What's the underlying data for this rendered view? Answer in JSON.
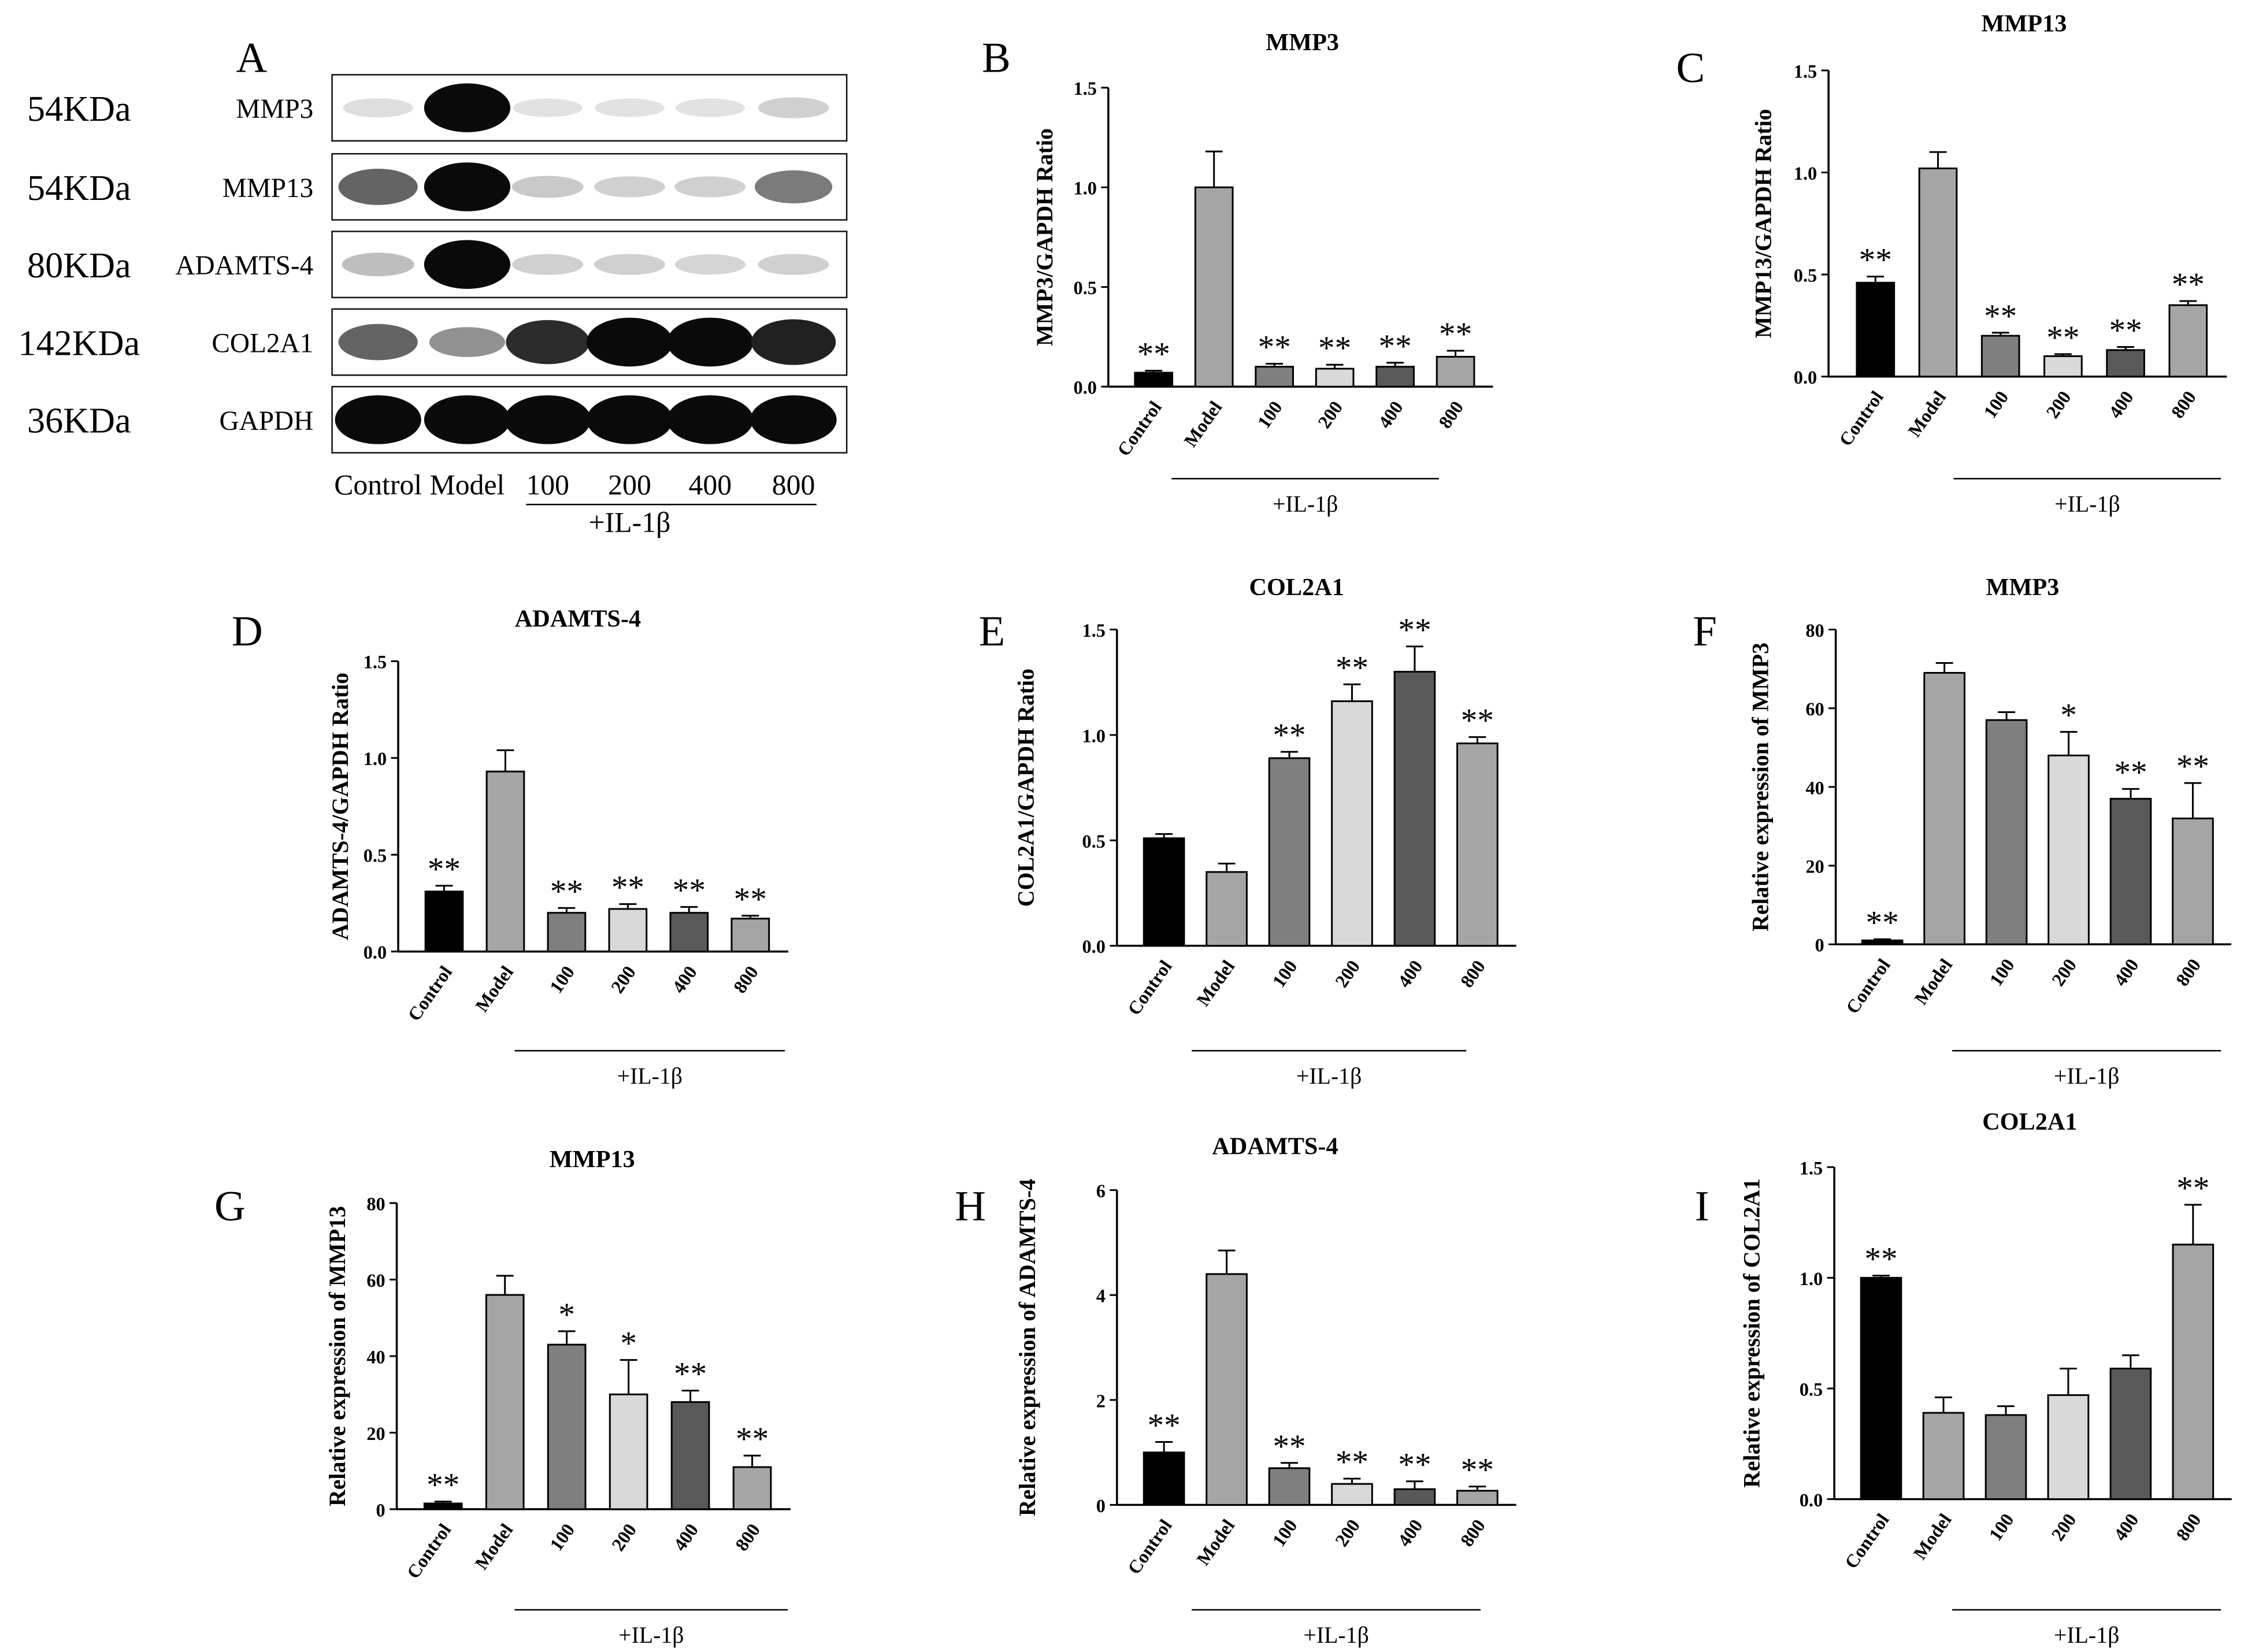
{
  "blot": {
    "label": "A",
    "rows": [
      {
        "kda": "54KDa",
        "protein": "MMP3",
        "bands": [
          0.06,
          1.0,
          0.04,
          0.04,
          0.04,
          0.12
        ]
      },
      {
        "kda": "54KDa",
        "protein": "MMP13",
        "bands": [
          0.6,
          1.0,
          0.15,
          0.12,
          0.12,
          0.5
        ]
      },
      {
        "kda": "80KDa",
        "protein": "ADAMTS-4",
        "bands": [
          0.2,
          1.0,
          0.12,
          0.12,
          0.1,
          0.12
        ]
      },
      {
        "kda": "142KDa",
        "protein": "COL2A1",
        "bands": [
          0.6,
          0.4,
          0.85,
          1.0,
          1.0,
          0.9
        ]
      },
      {
        "kda": "36KDa",
        "protein": "GAPDH",
        "bands": [
          1.0,
          1.0,
          1.0,
          1.0,
          1.0,
          1.0
        ]
      }
    ],
    "lanes": [
      "Control",
      "Model",
      "100",
      "200",
      "400",
      "800"
    ],
    "treatment": "+IL-1β"
  },
  "chart_data": [
    {
      "panel": "B",
      "type": "bar",
      "title": "MMP3",
      "ylabel": "MMP3/GAPDH Ratio",
      "categories": [
        "Control",
        "Model",
        "100",
        "200",
        "400",
        "800"
      ],
      "values": [
        0.07,
        1.0,
        0.1,
        0.09,
        0.1,
        0.15
      ],
      "errors": [
        0.01,
        0.18,
        0.015,
        0.02,
        0.02,
        0.03
      ],
      "significance": [
        "**",
        "",
        "**",
        "**",
        "**",
        "**"
      ],
      "ylim": [
        0,
        1.5
      ],
      "yticks": [
        "0.0",
        "0.5",
        "1.0",
        "1.5"
      ],
      "colors": [
        "#000000",
        "#a5a5a5",
        "#7f7f7f",
        "#d9d9d9",
        "#595959",
        "#a5a5a5"
      ],
      "group_label": "+IL-1β"
    },
    {
      "panel": "C",
      "type": "bar",
      "title": "MMP13",
      "ylabel": "MMP13/GAPDH Ratio",
      "categories": [
        "Control",
        "Model",
        "100",
        "200",
        "400",
        "800"
      ],
      "values": [
        0.46,
        1.02,
        0.2,
        0.1,
        0.13,
        0.35
      ],
      "errors": [
        0.03,
        0.08,
        0.015,
        0.01,
        0.015,
        0.02
      ],
      "significance": [
        "**",
        "",
        "**",
        "**",
        "**",
        "**"
      ],
      "ylim": [
        0,
        1.5
      ],
      "yticks": [
        "0.0",
        "0.5",
        "1.0",
        "1.5"
      ],
      "colors": [
        "#000000",
        "#a5a5a5",
        "#7f7f7f",
        "#d9d9d9",
        "#595959",
        "#a5a5a5"
      ],
      "group_label": "+IL-1β"
    },
    {
      "panel": "D",
      "type": "bar",
      "title": "ADAMTS-4",
      "ylabel": "ADAMTS-4/GAPDH Ratio",
      "categories": [
        "Control",
        "Model",
        "100",
        "200",
        "400",
        "800"
      ],
      "values": [
        0.31,
        0.93,
        0.2,
        0.22,
        0.2,
        0.17
      ],
      "errors": [
        0.03,
        0.11,
        0.025,
        0.025,
        0.03,
        0.015
      ],
      "significance": [
        "**",
        "",
        "**",
        "**",
        "**",
        "**"
      ],
      "ylim": [
        0,
        1.5
      ],
      "yticks": [
        "0.0",
        "0.5",
        "1.0",
        "1.5"
      ],
      "colors": [
        "#000000",
        "#a5a5a5",
        "#7f7f7f",
        "#d9d9d9",
        "#595959",
        "#a5a5a5"
      ],
      "group_label": "+IL-1β"
    },
    {
      "panel": "E",
      "type": "bar",
      "title": "COL2A1",
      "ylabel": "COL2A1/GAPDH Ratio",
      "categories": [
        "Control",
        "Model",
        "100",
        "200",
        "400",
        "800"
      ],
      "values": [
        0.51,
        0.35,
        0.89,
        1.16,
        1.3,
        0.96
      ],
      "errors": [
        0.02,
        0.04,
        0.03,
        0.08,
        0.12,
        0.03
      ],
      "significance": [
        "",
        "",
        "**",
        "**",
        "**",
        "**"
      ],
      "ylim": [
        0,
        1.5
      ],
      "yticks": [
        "0.0",
        "0.5",
        "1.0",
        "1.5"
      ],
      "colors": [
        "#000000",
        "#a5a5a5",
        "#7f7f7f",
        "#d9d9d9",
        "#595959",
        "#a5a5a5"
      ],
      "group_label": "+IL-1β"
    },
    {
      "panel": "F",
      "type": "bar",
      "title": "MMP3",
      "ylabel": "Relative expression of MMP3",
      "categories": [
        "Control",
        "Model",
        "100",
        "200",
        "400",
        "800"
      ],
      "values": [
        1.0,
        69,
        57,
        48,
        37,
        32
      ],
      "errors": [
        0.3,
        2.5,
        2,
        6,
        2.5,
        9
      ],
      "significance": [
        "**",
        "",
        "",
        "*",
        "**",
        "**"
      ],
      "ylim": [
        0,
        80
      ],
      "yticks": [
        "0",
        "20",
        "40",
        "60",
        "80"
      ],
      "colors": [
        "#000000",
        "#a5a5a5",
        "#7f7f7f",
        "#d9d9d9",
        "#595959",
        "#a5a5a5"
      ],
      "group_label": "+IL-1β"
    },
    {
      "panel": "G",
      "type": "bar",
      "title": "MMP13",
      "ylabel": "Relative expression of MMP13",
      "categories": [
        "Control",
        "Model",
        "100",
        "200",
        "400",
        "800"
      ],
      "values": [
        1.5,
        56,
        43,
        30,
        28,
        11
      ],
      "errors": [
        0.5,
        5,
        3.5,
        9,
        3,
        3
      ],
      "significance": [
        "**",
        "",
        "*",
        "*",
        "**",
        "**"
      ],
      "ylim": [
        0,
        80
      ],
      "yticks": [
        "0",
        "20",
        "40",
        "60",
        "80"
      ],
      "colors": [
        "#000000",
        "#a5a5a5",
        "#7f7f7f",
        "#d9d9d9",
        "#595959",
        "#a5a5a5"
      ],
      "group_label": "+IL-1β"
    },
    {
      "panel": "H",
      "type": "bar",
      "title": "ADAMTS-4",
      "ylabel": "Relative expression of ADAMTS-4",
      "categories": [
        "Control",
        "Model",
        "100",
        "200",
        "400",
        "800"
      ],
      "values": [
        1.0,
        4.4,
        0.7,
        0.4,
        0.3,
        0.27
      ],
      "errors": [
        0.2,
        0.45,
        0.1,
        0.1,
        0.15,
        0.08
      ],
      "significance": [
        "**",
        "",
        "**",
        "**",
        "**",
        "**"
      ],
      "ylim": [
        0,
        6
      ],
      "yticks": [
        "0",
        "2",
        "4",
        "6"
      ],
      "colors": [
        "#000000",
        "#a5a5a5",
        "#7f7f7f",
        "#d9d9d9",
        "#595959",
        "#a5a5a5"
      ],
      "group_label": "+IL-1β"
    },
    {
      "panel": "I",
      "type": "bar",
      "title": "COL2A1",
      "ylabel": "Relative expression of COL2A1",
      "categories": [
        "Control",
        "Model",
        "100",
        "200",
        "400",
        "800"
      ],
      "values": [
        1.0,
        0.39,
        0.38,
        0.47,
        0.59,
        1.15
      ],
      "errors": [
        0.01,
        0.07,
        0.04,
        0.12,
        0.06,
        0.18
      ],
      "significance": [
        "**",
        "",
        "",
        "",
        "",
        "**"
      ],
      "ylim": [
        0,
        1.5
      ],
      "yticks": [
        "0.0",
        "0.5",
        "1.0",
        "1.5"
      ],
      "colors": [
        "#000000",
        "#a5a5a5",
        "#7f7f7f",
        "#d9d9d9",
        "#595959",
        "#a5a5a5"
      ],
      "group_label": "+IL-1β"
    }
  ]
}
